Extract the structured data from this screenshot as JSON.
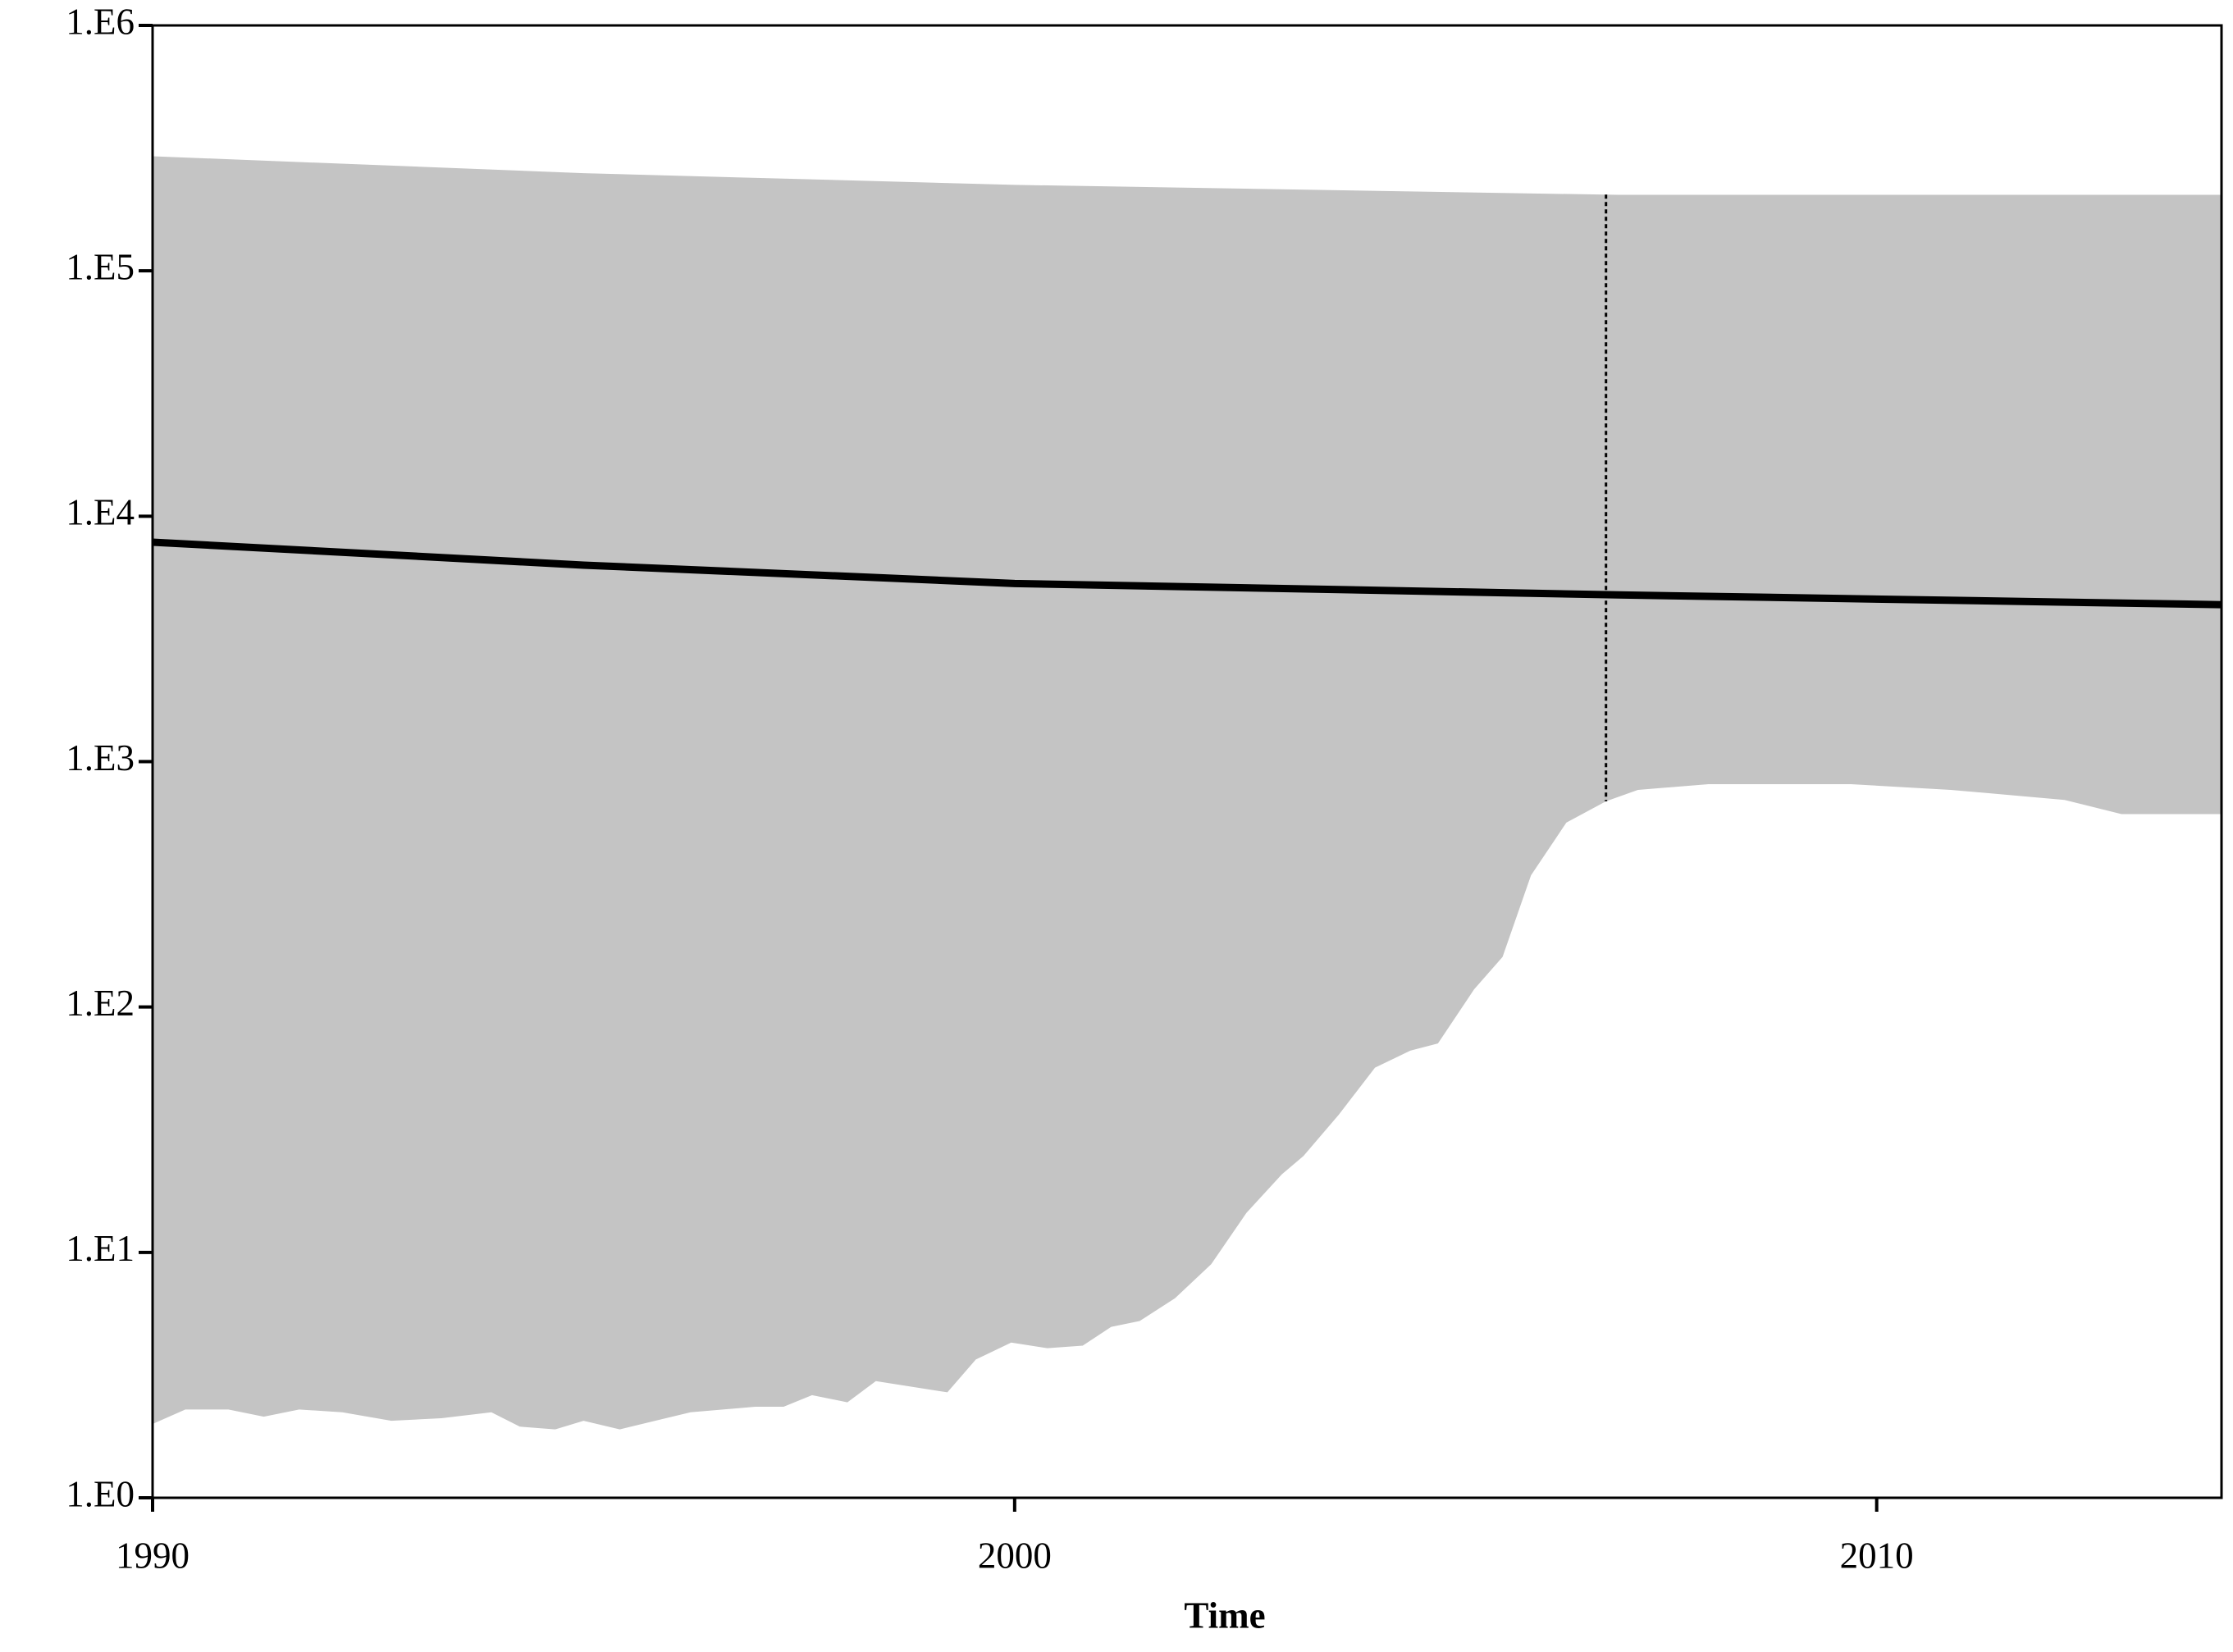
{
  "chart_data": {
    "type": "skyline",
    "x_label": "Time",
    "xlim": [
      1990,
      2014
    ],
    "xticks": [
      1990,
      2000,
      2010
    ],
    "log_y": true,
    "ylim": [
      1,
      1000000
    ],
    "yticks": [
      {
        "value": 1,
        "label": "1.E0"
      },
      {
        "value": 10,
        "label": "1.E1"
      },
      {
        "value": 100,
        "label": "1.E2"
      },
      {
        "value": 1000,
        "label": "1.E3"
      },
      {
        "value": 10000,
        "label": "1.E4"
      },
      {
        "value": 100000,
        "label": "1.E5"
      },
      {
        "value": 1000000,
        "label": "1.E6"
      }
    ],
    "band_color": "#c4c4c4",
    "line_color": "#000000",
    "upper": {
      "x": [
        1990,
        1995,
        2000,
        2007,
        2014
      ],
      "values": [
        293000,
        250000,
        224000,
        204000,
        204000
      ]
    },
    "median": {
      "x": [
        1990,
        1995,
        2000,
        2007,
        2014
      ],
      "values": [
        7840,
        6320,
        5320,
        4780,
        4360
      ]
    },
    "lower": {
      "x": [
        1990,
        1990.38,
        1990.88,
        1991.29,
        1991.7,
        1992.2,
        1992.77,
        1993.35,
        1993.93,
        1994.26,
        1994.67,
        1995,
        1995.42,
        1995.83,
        1996.24,
        1996.99,
        1997.32,
        1997.65,
        1998.06,
        1998.39,
        1999.22,
        1999.55,
        1999.96,
        2000.38,
        2000.79,
        2001.12,
        2001.45,
        2001.86,
        2002.28,
        2002.69,
        2003.1,
        2003.35,
        2003.76,
        2004.18,
        2004.59,
        2004.91,
        2005.33,
        2005.66,
        2005.99,
        2006.4,
        2006.86,
        2007.23,
        2008.05,
        2009.7,
        2010.86,
        2012.18,
        2012.84,
        2014
      ],
      "values": [
        2.0,
        2.29,
        2.29,
        2.14,
        2.29,
        2.23,
        2.06,
        2.11,
        2.23,
        1.95,
        1.9,
        2.06,
        1.9,
        2.06,
        2.23,
        2.35,
        2.35,
        2.62,
        2.45,
        2.99,
        2.69,
        3.66,
        4.29,
        4.07,
        4.17,
        4.97,
        5.25,
        6.5,
        8.95,
        14.5,
        20.8,
        24.7,
        36.4,
        56.6,
        66.4,
        71,
        118,
        160,
        344,
        564,
        689,
        767,
        809,
        809,
        767,
        698,
        611,
        611
      ]
    },
    "marker_x": 2006.86
  }
}
